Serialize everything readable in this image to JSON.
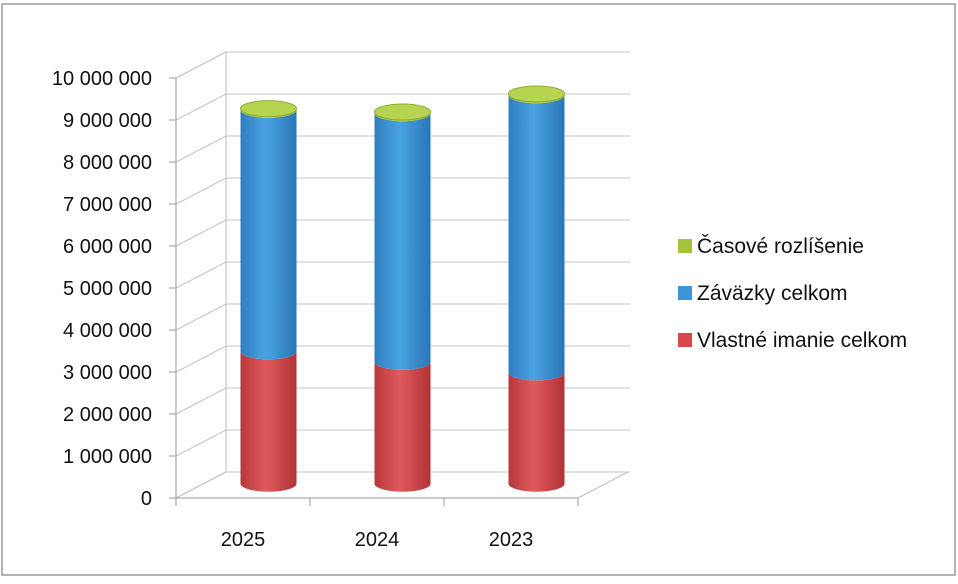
{
  "chart_data": {
    "type": "bar",
    "stacked": true,
    "style": "3d-cylinder",
    "categories": [
      "2025",
      "2024",
      "2023"
    ],
    "series": [
      {
        "name": "Vlastné imanie celkom",
        "color": "#d9474a",
        "values": [
          3150000,
          2900000,
          2650000
        ]
      },
      {
        "name": "Záväzky celkom",
        "color": "#3d94d6",
        "values": [
          5750000,
          5920000,
          6600000
        ]
      },
      {
        "name": "Časové rozlíšenie",
        "color": "#a4c43c",
        "values": [
          30000,
          30000,
          30000
        ]
      }
    ],
    "yticks": [
      "0",
      "1 000 000",
      "2 000 000",
      "3 000 000",
      "4 000 000",
      "5 000 000",
      "6 000 000",
      "7 000 000",
      "8 000 000",
      "9 000 000",
      "10 000 000"
    ],
    "ylim": [
      0,
      10000000
    ],
    "title": "",
    "xlabel": "",
    "ylabel": "",
    "grid": true,
    "legend_position": "right",
    "legend_order": [
      "Časové rozlíšenie",
      "Záväzky celkom",
      "Vlastné imanie celkom"
    ]
  }
}
